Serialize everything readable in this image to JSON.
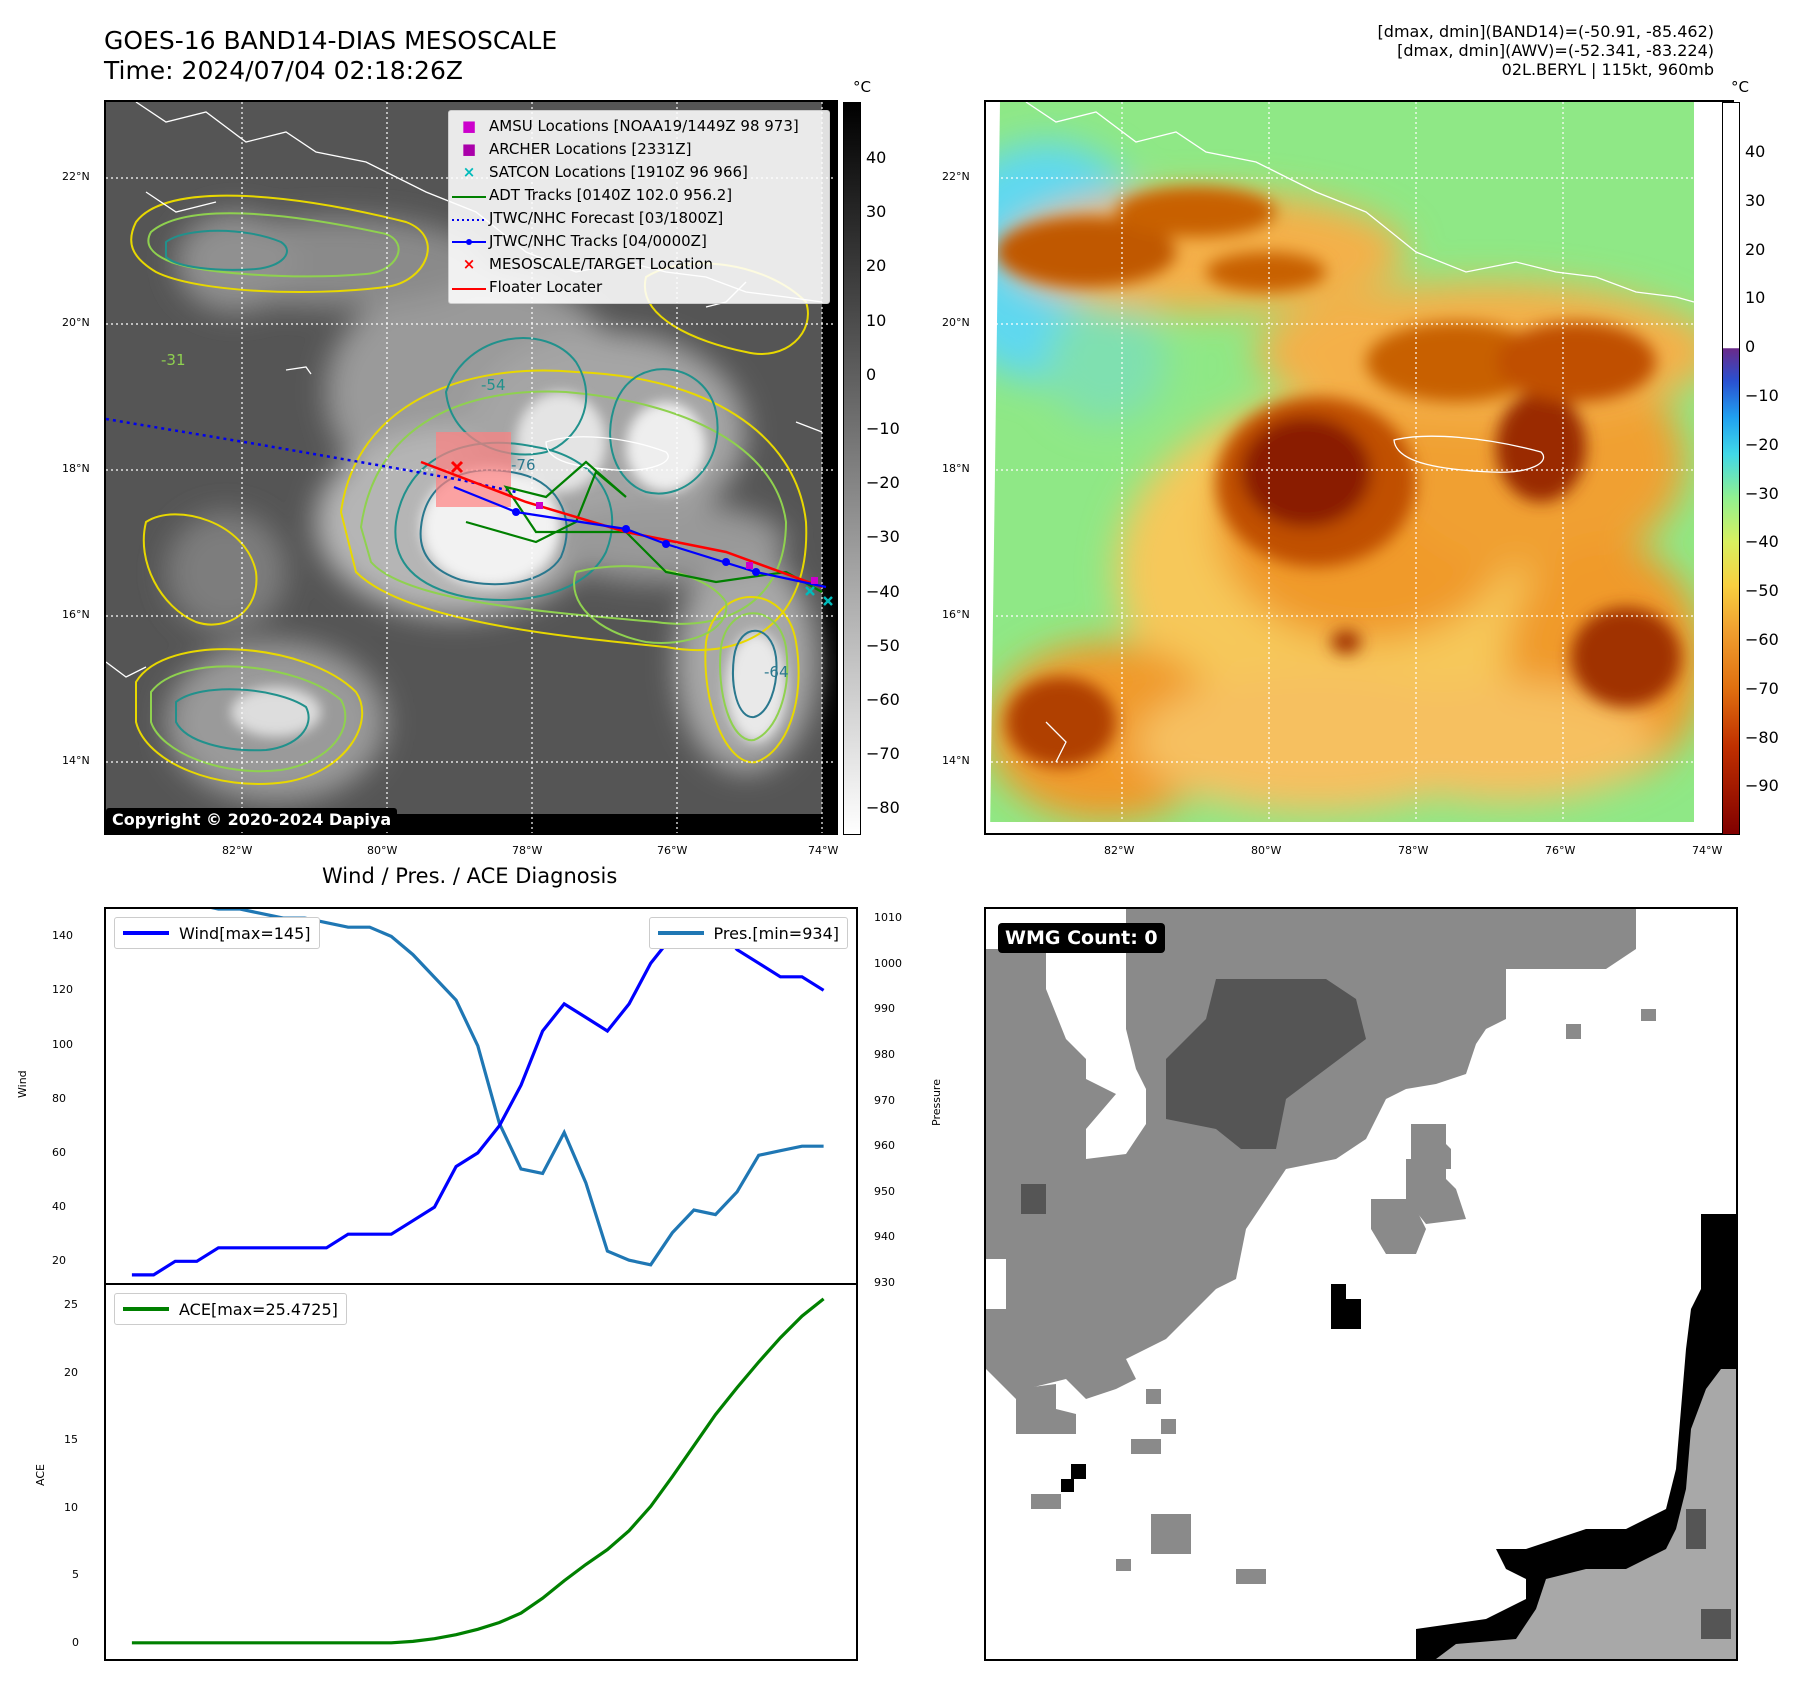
{
  "header": {
    "title_line1": "GOES-16 BAND14-DIAS MESOSCALE",
    "title_line2": "Time: 2024/07/04 02:18:26Z",
    "info_line1": "[dmax, dmin](BAND14)=(-50.91, -85.462)",
    "info_line2": "[dmax, dmin](AWV)=(-52.341, -83.224)",
    "info_line3": "02L.BERYL | 115kt, 960mb"
  },
  "maps": {
    "lat_labels": [
      "22°N",
      "20°N",
      "18°N",
      "16°N",
      "14°N"
    ],
    "lon_labels": [
      "82°W",
      "80°W",
      "78°W",
      "76°W",
      "74°W"
    ],
    "unit": "°C",
    "left_colorbar_ticks": [
      "40",
      "30",
      "20",
      "10",
      "0",
      "−10",
      "−20",
      "−30",
      "−40",
      "−50",
      "−60",
      "−70",
      "−80"
    ],
    "right_colorbar_ticks": [
      "40",
      "30",
      "20",
      "10",
      "0",
      "−10",
      "−20",
      "−30",
      "−40",
      "−50",
      "−60",
      "−70",
      "−80",
      "−90"
    ],
    "legend": [
      {
        "label": "AMSU Locations [NOAA19/1449Z 98 973]",
        "symbol": "square",
        "color": "#cc00cc"
      },
      {
        "label": "ARCHER Locations [2331Z]",
        "symbol": "square",
        "color": "#aa00aa"
      },
      {
        "label": "SATCON Locations [1910Z 96 966]",
        "symbol": "x",
        "color": "#00bbbb"
      },
      {
        "label": "ADT Tracks [0140Z 102.0 956.2]",
        "symbol": "line",
        "color": "#008000"
      },
      {
        "label": "JTWC/NHC Forecast [03/1800Z]",
        "symbol": "dotted",
        "color": "#0000ee"
      },
      {
        "label": "JTWC/NHC Tracks [04/0000Z]",
        "symbol": "line-dot",
        "color": "#0000ff"
      },
      {
        "label": "MESOSCALE/TARGET Location",
        "symbol": "x",
        "color": "#ff0000"
      },
      {
        "label": "Floater Locater",
        "symbol": "line",
        "color": "#ff0000"
      }
    ],
    "copyright": "Copyright © 2020-2024 Dapiya",
    "contour_labels": [
      "-31",
      "-54",
      "-64",
      "-76"
    ]
  },
  "diagnosis": {
    "title": "Wind / Pres. / ACE Diagnosis",
    "wind_legend": "Wind[max=145]",
    "pres_legend": "Pres.[min=934]",
    "ace_legend": "ACE[max=25.4725]",
    "wind_ylabel": "Wind",
    "pres_ylabel": "Pressure",
    "ace_ylabel": "ACE",
    "colors": {
      "wind": "#0000ff",
      "pres": "#1f77b4",
      "ace": "#008000"
    }
  },
  "chart_data": [
    {
      "type": "line",
      "x": [
        0,
        1,
        2,
        3,
        4,
        5,
        6,
        7,
        8,
        9,
        10,
        11,
        12,
        13,
        14,
        15,
        16,
        17,
        18,
        19,
        20,
        21,
        22,
        23,
        24,
        25,
        26,
        27,
        28,
        29,
        30,
        31,
        32
      ],
      "series": [
        {
          "name": "Wind[max=145]",
          "axis": "left",
          "values": [
            15,
            15,
            20,
            20,
            25,
            25,
            25,
            25,
            25,
            25,
            30,
            30,
            30,
            35,
            40,
            55,
            60,
            70,
            85,
            105,
            115,
            110,
            105,
            115,
            130,
            140,
            145,
            145,
            135,
            130,
            125,
            125,
            120
          ]
        },
        {
          "name": "Pres.[min=934]",
          "axis": "right",
          "values": [
            1014,
            1014,
            1014,
            1013,
            1012,
            1012,
            1011,
            1010,
            1010,
            1009,
            1008,
            1008,
            1006,
            1002,
            997,
            992,
            982,
            965,
            955,
            954,
            963,
            952,
            937,
            935,
            934,
            941,
            946,
            945,
            950,
            958,
            959,
            960,
            960
          ]
        }
      ],
      "ylim_left": [
        12,
        150
      ],
      "yticks_left": [
        20,
        40,
        60,
        80,
        100,
        120,
        140
      ],
      "ylim_right": [
        930,
        1012
      ],
      "yticks_right": [
        930,
        940,
        950,
        960,
        970,
        980,
        990,
        1000,
        1010
      ],
      "ylabel": "Wind",
      "ylabel_right": "Pressure"
    },
    {
      "type": "line",
      "x": [
        0,
        1,
        2,
        3,
        4,
        5,
        6,
        7,
        8,
        9,
        10,
        11,
        12,
        13,
        14,
        15,
        16,
        17,
        18,
        19,
        20,
        21,
        22,
        23,
        24,
        25,
        26,
        27,
        28,
        29,
        30,
        31,
        32
      ],
      "series": [
        {
          "name": "ACE[max=25.4725]",
          "values": [
            0,
            0,
            0,
            0,
            0,
            0,
            0,
            0,
            0,
            0,
            0,
            0,
            0,
            0.1,
            0.3,
            0.6,
            1.0,
            1.5,
            2.2,
            3.3,
            4.6,
            5.8,
            6.9,
            8.3,
            10.1,
            12.3,
            14.6,
            16.9,
            18.9,
            20.8,
            22.6,
            24.2,
            25.47
          ]
        }
      ],
      "ylim": [
        -1.2,
        26.5
      ],
      "yticks": [
        0,
        5,
        10,
        15,
        20,
        25
      ],
      "ylabel": "ACE"
    }
  ],
  "wmg": {
    "count_label": "WMG Count: 0"
  }
}
